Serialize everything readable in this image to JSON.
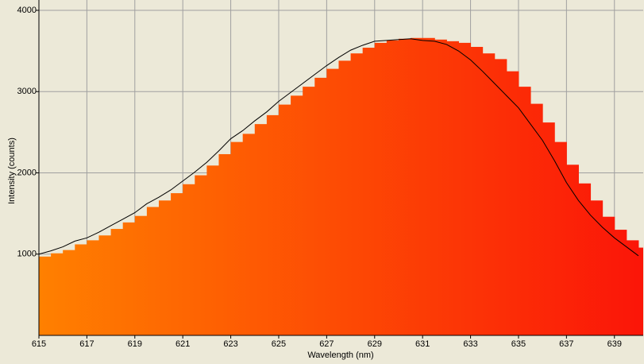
{
  "chart_data": {
    "type": "bar",
    "xlabel": "Wavelength (nm)",
    "ylabel": "Intensity (counts)",
    "x": [
      615,
      615.5,
      616,
      616.5,
      617,
      617.5,
      618,
      618.5,
      619,
      619.5,
      620,
      620.5,
      621,
      621.5,
      622,
      622.5,
      623,
      623.5,
      624,
      624.5,
      625,
      625.5,
      626,
      626.5,
      627,
      627.5,
      628,
      628.5,
      629,
      629.5,
      630,
      630.5,
      631,
      631.5,
      632,
      632.5,
      633,
      633.5,
      634,
      634.5,
      635,
      635.5,
      636,
      636.5,
      637,
      637.5,
      638,
      638.5,
      639,
      639.5,
      640
    ],
    "series": [
      {
        "color": [
          "#ff8000",
          "#fb1508"
        ],
        "values": [
          970,
          1010,
          1050,
          1120,
          1170,
          1230,
          1310,
          1390,
          1470,
          1580,
          1660,
          1750,
          1860,
          1970,
          2090,
          2230,
          2380,
          2480,
          2600,
          2710,
          2840,
          2950,
          3060,
          3170,
          3280,
          3380,
          3470,
          3540,
          3600,
          3630,
          3650,
          3660,
          3660,
          3640,
          3620,
          3600,
          3550,
          3470,
          3400,
          3250,
          3060,
          2850,
          2620,
          2380,
          2100,
          1870,
          1660,
          1460,
          1300,
          1170,
          1080
        ]
      },
      {
        "color": "#000000",
        "values": [
          1000,
          1040,
          1090,
          1160,
          1200,
          1270,
          1350,
          1430,
          1510,
          1620,
          1700,
          1790,
          1900,
          2010,
          2130,
          2270,
          2420,
          2520,
          2640,
          2750,
          2880,
          2990,
          3100,
          3210,
          3320,
          3420,
          3510,
          3570,
          3620,
          3630,
          3640,
          3650,
          3630,
          3620,
          3580,
          3500,
          3390,
          3250,
          3100,
          2950,
          2800,
          2600,
          2400,
          2150,
          1880,
          1660,
          1480,
          1330,
          1200,
          1090,
          980
        ]
      }
    ],
    "xlim": [
      615,
      640.2
    ],
    "ylim": [
      0,
      4000
    ],
    "xticks": [
      615,
      617,
      619,
      621,
      623,
      625,
      627,
      629,
      631,
      633,
      635,
      637,
      639
    ],
    "yticks": [
      1000,
      2000,
      3000,
      4000
    ],
    "grid": true
  }
}
